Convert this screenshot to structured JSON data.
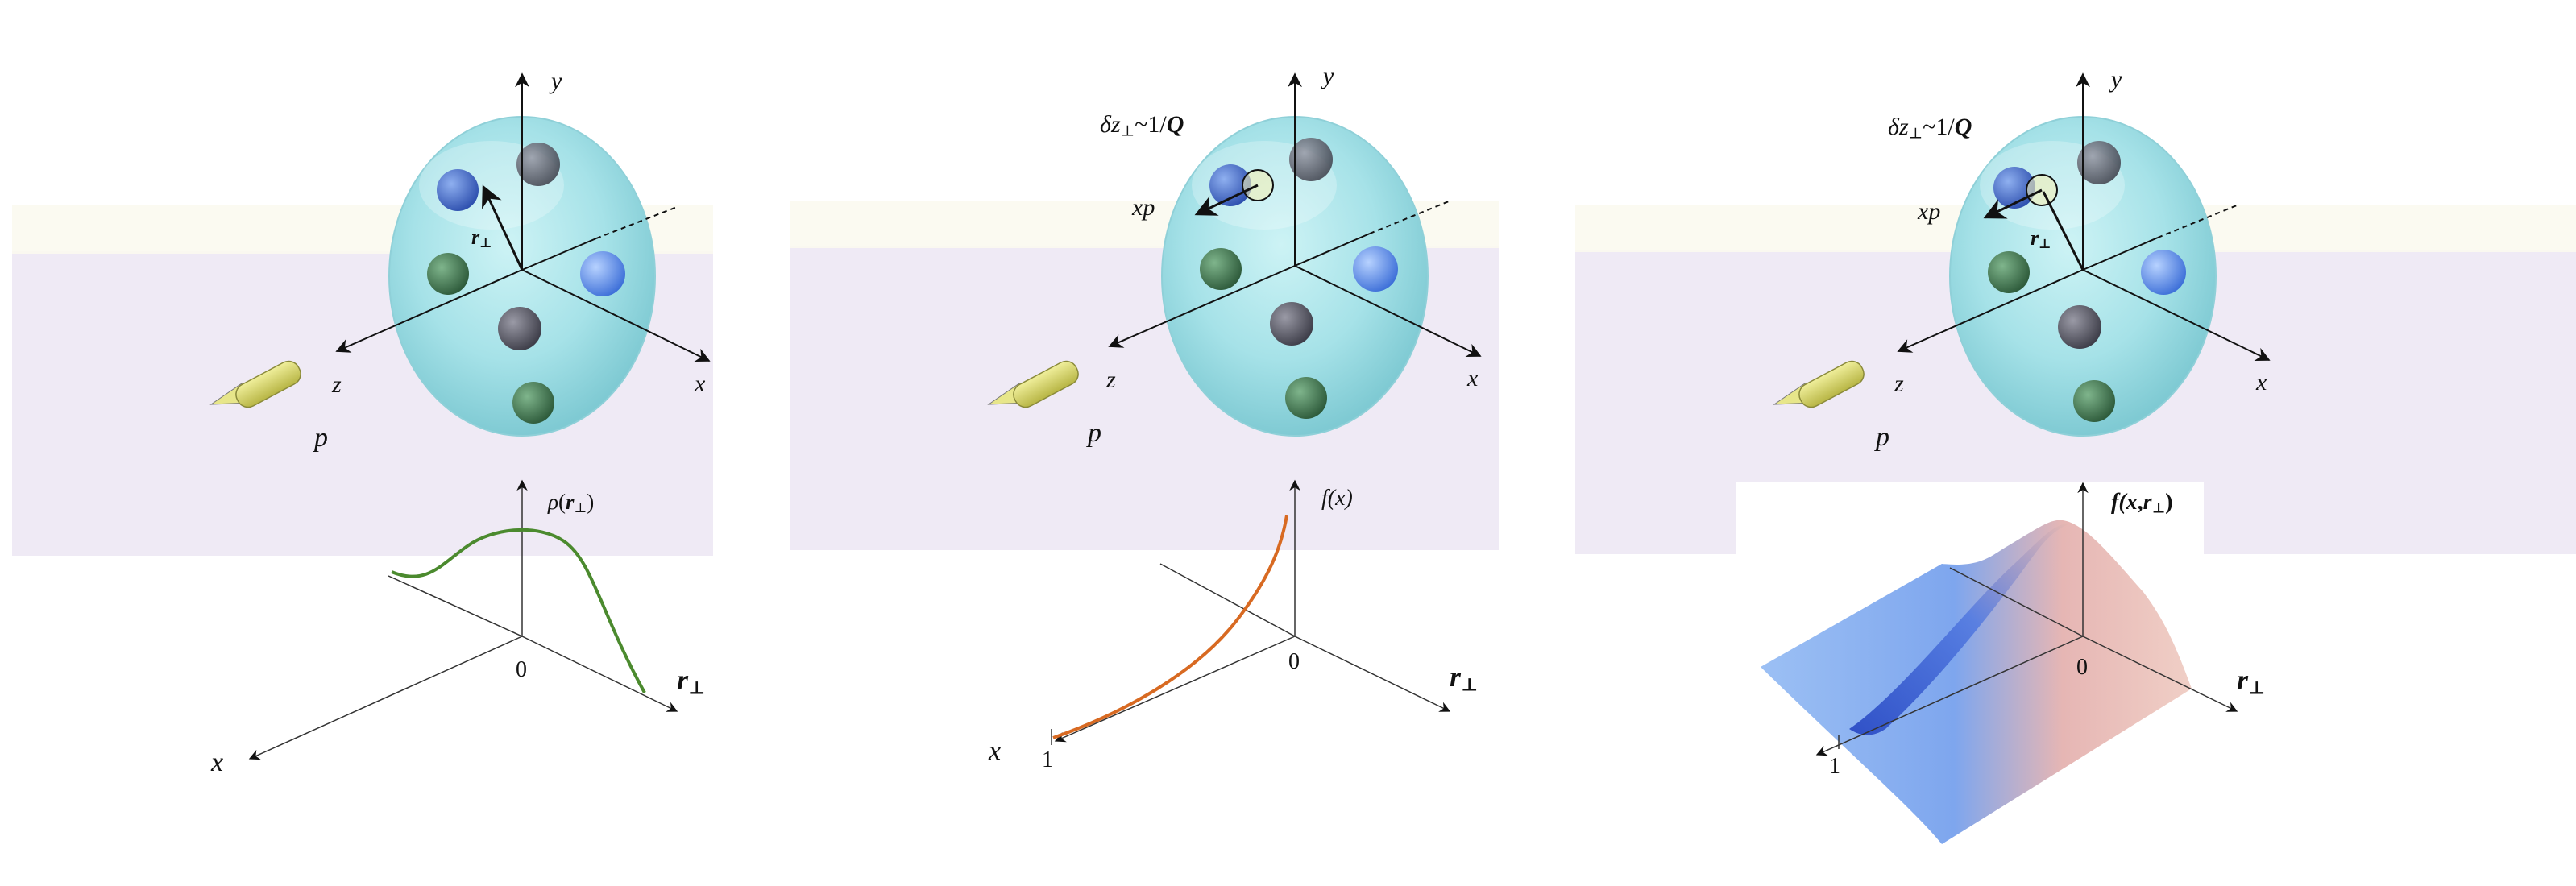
{
  "colors": {
    "band": "#ece6f3",
    "proton_fill": "#a8e4ea",
    "quark_blue": "#3c63c8",
    "quark_green": "#3f7a4e",
    "quark_gray": "#5c5c66",
    "probe": "#d9d86a",
    "rho_curve": "#4b8a2e",
    "fx_curve": "#d86a22",
    "surface_blue": "#8fb6f0",
    "surface_pink": "#e8b8b0"
  },
  "panels": [
    {
      "axis_y": "y",
      "axis_x": "x",
      "axis_z": "z",
      "probe": "p",
      "r_perp": "r",
      "r_perp_sub": "⊥",
      "plot_title_func": "ρ",
      "plot_title_arg": "r",
      "plot_title_sub": "⊥",
      "plot_origin": "0",
      "plot_x": "x",
      "plot_r": "r",
      "plot_r_sub": "⊥"
    },
    {
      "axis_y": "y",
      "axis_x": "x",
      "axis_z": "z",
      "probe": "p",
      "delta_main": "δz",
      "delta_sub": "⊥",
      "delta_tail": "~1/",
      "delta_Q": "Q",
      "xp": "xp",
      "plot_title": "f(x)",
      "plot_origin": "0",
      "plot_x": "x",
      "plot_one": "1",
      "plot_r": "r",
      "plot_r_sub": "⊥"
    },
    {
      "axis_y": "y",
      "axis_x": "x",
      "axis_z": "z",
      "probe": "p",
      "delta_main": "δz",
      "delta_sub": "⊥",
      "delta_tail": "~1/",
      "delta_Q": "Q",
      "xp": "xp",
      "r_perp": "r",
      "r_perp_sub": "⊥",
      "plot_title_pre": "f(",
      "plot_title_x": "x",
      "plot_title_comma": ",",
      "plot_title_r": "r",
      "plot_title_sub": "⊥",
      "plot_title_post": ")",
      "plot_origin": "0",
      "plot_one": "1",
      "plot_r": "r",
      "plot_r_sub": "⊥"
    }
  ]
}
